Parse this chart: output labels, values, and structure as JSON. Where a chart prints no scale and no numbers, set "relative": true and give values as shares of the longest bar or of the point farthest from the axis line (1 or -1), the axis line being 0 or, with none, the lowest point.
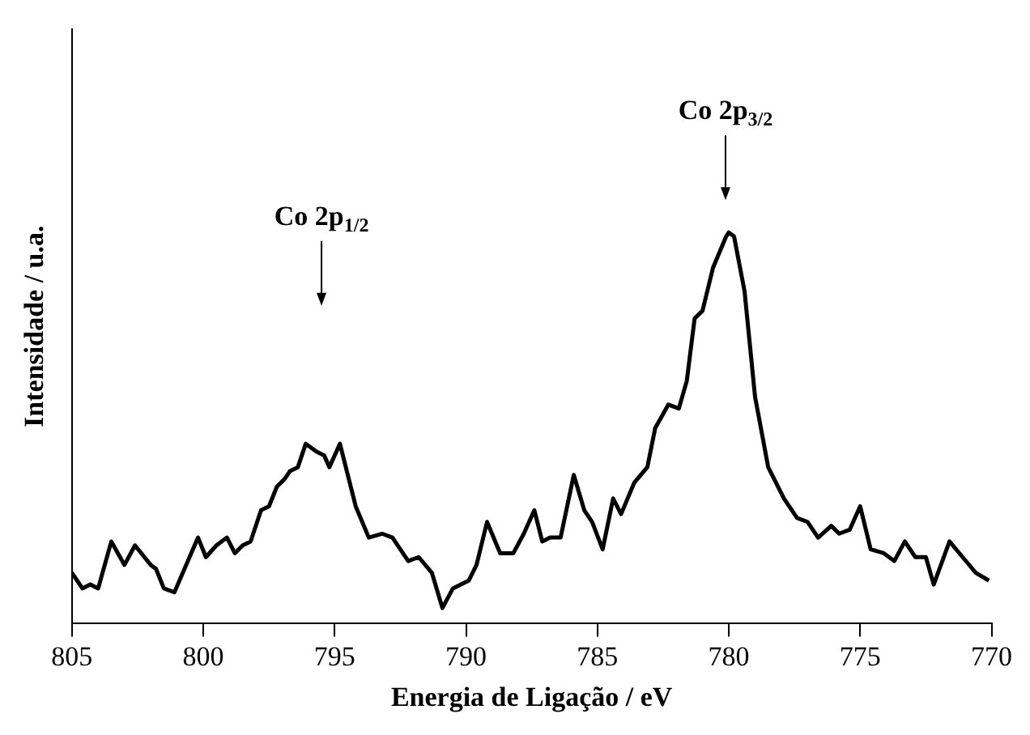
{
  "chart_data": {
    "type": "line",
    "xlabel": "Energia de Ligação / eV",
    "ylabel": "Intensidade / u.a.",
    "relative": true,
    "color": "#000000",
    "grid": false,
    "legend": false,
    "marker": "none",
    "line_style": "solid",
    "xlim": [
      805,
      770
    ],
    "xticks": [
      805,
      800,
      795,
      790,
      785,
      780,
      775,
      770
    ],
    "x": [
      805.0,
      804.6,
      804.3,
      804.0,
      803.5,
      803.0,
      802.6,
      802.0,
      801.8,
      801.5,
      801.1,
      800.2,
      799.9,
      799.5,
      799.1,
      798.8,
      798.5,
      798.2,
      797.8,
      797.5,
      797.2,
      796.9,
      796.7,
      796.4,
      796.1,
      795.7,
      795.4,
      795.2,
      794.8,
      794.2,
      793.7,
      793.2,
      792.8,
      792.2,
      791.8,
      791.3,
      790.9,
      790.5,
      789.9,
      789.6,
      789.2,
      788.7,
      788.2,
      787.8,
      787.4,
      787.1,
      786.8,
      786.4,
      785.9,
      785.5,
      785.2,
      784.8,
      784.4,
      784.1,
      783.6,
      783.1,
      782.8,
      782.3,
      781.9,
      781.6,
      781.3,
      781.0,
      780.6,
      780.1,
      780.0,
      779.8,
      779.4,
      779.0,
      778.5,
      777.9,
      777.4,
      777.0,
      776.6,
      776.1,
      775.8,
      775.4,
      775.0,
      774.6,
      774.1,
      773.7,
      773.3,
      772.9,
      772.5,
      772.2,
      771.6,
      771.1,
      770.6,
      770.1
    ],
    "values": [
      0.13,
      0.09,
      0.1,
      0.09,
      0.21,
      0.15,
      0.2,
      0.15,
      0.14,
      0.09,
      0.08,
      0.22,
      0.17,
      0.2,
      0.22,
      0.18,
      0.2,
      0.21,
      0.29,
      0.3,
      0.35,
      0.37,
      0.39,
      0.4,
      0.46,
      0.44,
      0.43,
      0.4,
      0.46,
      0.3,
      0.22,
      0.23,
      0.22,
      0.16,
      0.17,
      0.13,
      0.04,
      0.09,
      0.11,
      0.15,
      0.26,
      0.18,
      0.18,
      0.23,
      0.29,
      0.21,
      0.22,
      0.22,
      0.38,
      0.29,
      0.26,
      0.19,
      0.32,
      0.28,
      0.36,
      0.4,
      0.5,
      0.56,
      0.55,
      0.62,
      0.78,
      0.8,
      0.91,
      0.99,
      1,
      0.99,
      0.85,
      0.58,
      0.4,
      0.32,
      0.27,
      0.26,
      0.22,
      0.25,
      0.23,
      0.24,
      0.3,
      0.19,
      0.18,
      0.16,
      0.21,
      0.17,
      0.17,
      0.1,
      0.21,
      0.17,
      0.13,
      0.11
    ],
    "annotations": [
      "Co 2p$_{1/2}$",
      "Co 2p$_{3/2}$"
    ]
  }
}
